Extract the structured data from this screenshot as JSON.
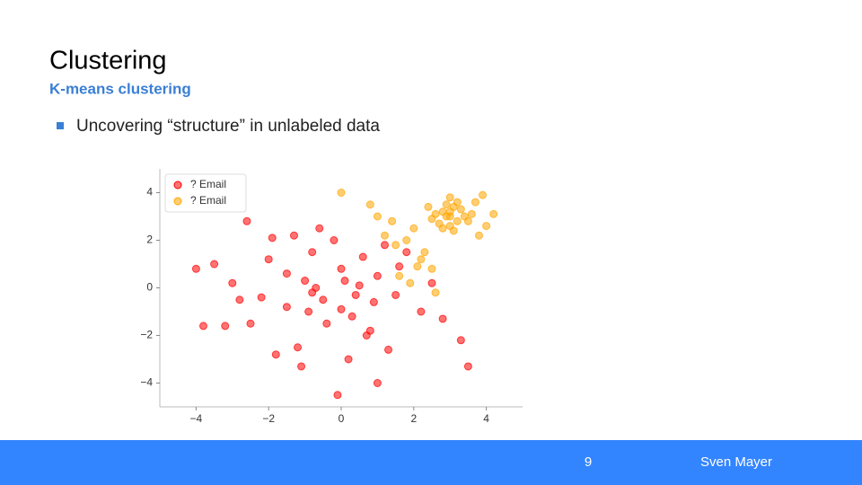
{
  "slide": {
    "title": "Clustering",
    "subtitle": "K-means clustering",
    "bullets": [
      "Uncovering “structure” in unlabeled data"
    ],
    "footer": {
      "page": "9",
      "author": "Sven Mayer"
    }
  },
  "chart_data": {
    "type": "scatter",
    "legend": "upper left",
    "xlim": [
      -5,
      5
    ],
    "ylim": [
      -5,
      5
    ],
    "xticks": [
      {
        "value": -4,
        "label": "−4"
      },
      {
        "value": -2,
        "label": "−2"
      },
      0,
      2,
      4
    ],
    "yticks": [
      {
        "value": -4,
        "label": "−4"
      },
      {
        "value": -2,
        "label": "−2"
      },
      0,
      2,
      4
    ],
    "series": [
      {
        "name": "? Email",
        "color": "#ff0000",
        "x": [
          -1,
          -0.5,
          0,
          0.5,
          -1.5,
          -2,
          -0.8,
          0.3,
          1,
          1.5,
          -2.5,
          -3,
          -3.5,
          -4,
          -1.2,
          -0.2,
          0.7,
          1.8,
          2.2,
          -0.6,
          -1.8,
          0.2,
          1.2,
          -2.8,
          -0.4,
          0.9,
          -1.5,
          2.8,
          3.3,
          -0.8,
          0.1,
          -2.2,
          -3.2,
          1.6,
          0.6,
          -0.9,
          -1.3,
          0.4,
          2.5,
          -0.1,
          -2.6,
          1.3,
          -0.7,
          0.8,
          -1.1,
          -3.8,
          3.5,
          -1.9,
          0.0,
          1.0
        ],
        "values": [
          0.3,
          -0.5,
          0.8,
          0.1,
          -0.8,
          1.2,
          1.5,
          -1.2,
          0.5,
          -0.3,
          -1.5,
          0.2,
          1.0,
          0.8,
          -2.5,
          2.0,
          -2.0,
          1.5,
          -1.0,
          2.5,
          -2.8,
          -3.0,
          1.8,
          -0.5,
          -1.5,
          -0.6,
          0.6,
          -1.3,
          -2.2,
          -0.2,
          0.3,
          -0.4,
          -1.6,
          0.9,
          1.3,
          -1.0,
          2.2,
          -0.3,
          0.2,
          -4.5,
          2.8,
          -2.6,
          0.0,
          -1.8,
          -3.3,
          -1.6,
          -3.3,
          2.1,
          -0.9,
          -4.0
        ]
      },
      {
        "name": "? Email",
        "color": "#ffa500",
        "x": [
          3,
          2.8,
          3.2,
          2.6,
          3.4,
          3.0,
          2.9,
          3.1,
          2.7,
          3.3,
          2.5,
          3.5,
          3.0,
          2.8,
          3.2,
          3.6,
          2.4,
          3.1,
          2.9,
          3.0,
          2.0,
          1.5,
          1.2,
          1.8,
          2.2,
          1.0,
          0.8,
          2.5,
          1.9,
          0.0,
          3.9,
          4.2,
          3.8,
          2.3,
          1.6,
          2.6,
          3.7,
          4.0,
          2.1,
          1.4
        ],
        "values": [
          3,
          3.2,
          2.8,
          3.1,
          3.0,
          2.6,
          3.5,
          3.4,
          2.7,
          3.3,
          2.9,
          2.8,
          3.8,
          2.5,
          3.6,
          3.1,
          3.4,
          2.4,
          3.0,
          3.2,
          2.5,
          1.8,
          2.2,
          2.0,
          1.2,
          3.0,
          3.5,
          0.8,
          0.2,
          4.0,
          3.9,
          3.1,
          2.2,
          1.5,
          0.5,
          -0.2,
          3.6,
          2.6,
          0.9,
          2.8
        ]
      }
    ]
  }
}
